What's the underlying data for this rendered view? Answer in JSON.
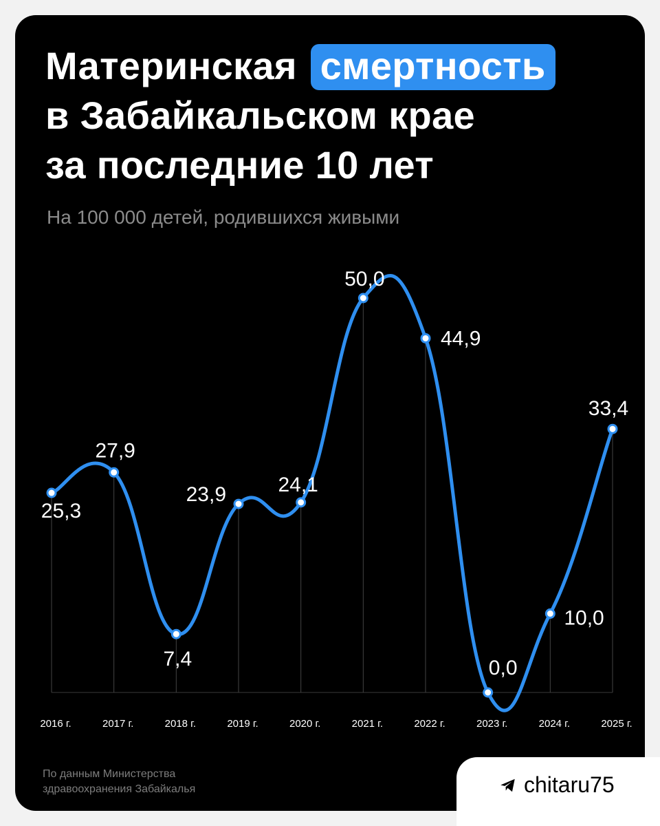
{
  "title": {
    "part1": "Материнская",
    "highlight": "смертность",
    "line2": "в Забайкальском крае",
    "line3": "за последние 10 лет"
  },
  "subtitle": "На 100 000 детей, родившихся живыми",
  "source": {
    "line1": "По данным Министерства",
    "line2": "здравоохранения Забайкалья"
  },
  "brand": {
    "name": "chitaru75",
    "icon": "telegram-icon"
  },
  "colors": {
    "background": "#000000",
    "line": "#2f8ff0",
    "highlight": "#2f8ff0",
    "text": "#ffffff",
    "muted": "#8b8b8b"
  },
  "chart_data": {
    "type": "line",
    "categories": [
      "2016 г.",
      "2017 г.",
      "2018 г.",
      "2019 г.",
      "2020 г.",
      "2021 г.",
      "2022 г.",
      "2023 г.",
      "2024 г.",
      "2025 г."
    ],
    "series": [
      {
        "values": [
          25.3,
          27.9,
          7.4,
          23.9,
          24.1,
          50.0,
          44.9,
          0.0,
          10.0,
          33.4
        ]
      }
    ],
    "labels": [
      "25,3",
      "27,9",
      "7,4",
      "23,9",
      "24,1",
      "50,0",
      "44,9",
      "0,0",
      "10,0",
      "33,4"
    ],
    "ylim": [
      0,
      50
    ],
    "grid": "vertical drop lines per point",
    "smooth": true
  }
}
